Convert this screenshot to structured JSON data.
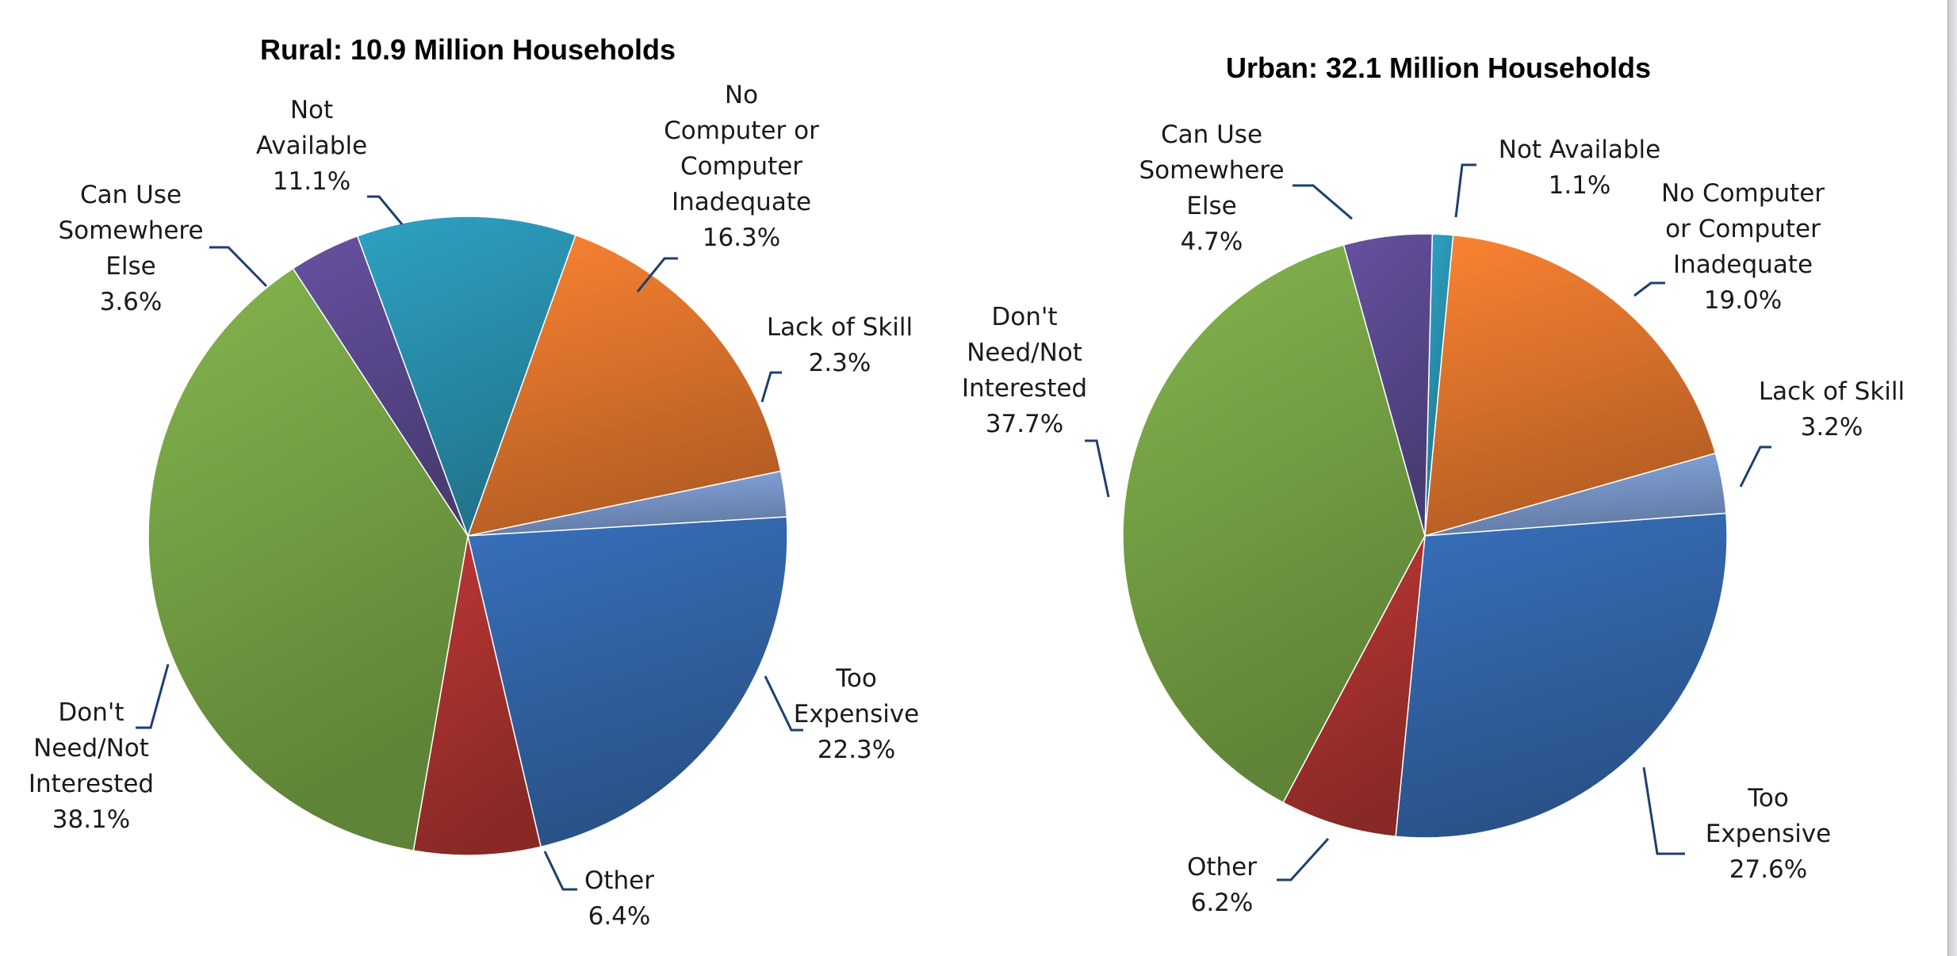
{
  "chart_data": [
    {
      "type": "pie",
      "title": "Rural:  10.9 Million Households",
      "slices": [
        {
          "key": "no-computer",
          "label_lines": [
            "No",
            "Computer or",
            "Computer",
            "Inadequate"
          ],
          "percent_text": "16.3%",
          "value": 16.3,
          "color": "#e8792e"
        },
        {
          "key": "lack-of-skill",
          "label_lines": [
            "Lack of Skill"
          ],
          "percent_text": "2.3%",
          "value": 2.3,
          "color": "#7f9ed4"
        },
        {
          "key": "too-expensive",
          "label_lines": [
            "Too",
            "Expensive"
          ],
          "percent_text": "22.3%",
          "value": 22.3,
          "color": "#3468ad"
        },
        {
          "key": "other",
          "label_lines": [
            "Other"
          ],
          "percent_text": "6.4%",
          "value": 6.4,
          "color": "#b03431"
        },
        {
          "key": "dont-need",
          "label_lines": [
            "Don't",
            "Need/Not",
            "Interested"
          ],
          "percent_text": "38.1%",
          "value": 38.1,
          "color": "#7aa847"
        },
        {
          "key": "can-use-elsewhere",
          "label_lines": [
            "Can Use",
            "Somewhere",
            "Else"
          ],
          "percent_text": "3.6%",
          "value": 3.6,
          "color": "#5e4b94"
        },
        {
          "key": "not-available",
          "label_lines": [
            "Not",
            "Available"
          ],
          "percent_text": "11.1%",
          "value": 11.1,
          "color": "#2b96b5"
        }
      ]
    },
    {
      "type": "pie",
      "title": "Urban:  32.1 Million Households",
      "slices": [
        {
          "key": "not-available",
          "label_lines": [
            "Not Available"
          ],
          "percent_text": "1.1%",
          "value": 1.1,
          "color": "#2b96b5"
        },
        {
          "key": "no-computer",
          "label_lines": [
            "No Computer",
            "or Computer",
            "Inadequate"
          ],
          "percent_text": "19.0%",
          "value": 19.0,
          "color": "#e8792e"
        },
        {
          "key": "lack-of-skill",
          "label_lines": [
            "Lack of Skill"
          ],
          "percent_text": "3.2%",
          "value": 3.2,
          "color": "#7f9ed4"
        },
        {
          "key": "too-expensive",
          "label_lines": [
            "Too",
            "Expensive"
          ],
          "percent_text": "27.6%",
          "value": 27.6,
          "color": "#3468ad"
        },
        {
          "key": "other",
          "label_lines": [
            "Other"
          ],
          "percent_text": "6.2%",
          "value": 6.2,
          "color": "#b03431"
        },
        {
          "key": "dont-need",
          "label_lines": [
            "Don't",
            "Need/Not",
            "Interested"
          ],
          "percent_text": "37.7%",
          "value": 37.7,
          "color": "#7aa847"
        },
        {
          "key": "can-use-elsewhere",
          "label_lines": [
            "Can Use",
            "Somewhere",
            "Else"
          ],
          "percent_text": "4.7%",
          "value": 4.7,
          "color": "#5e4b94"
        }
      ]
    }
  ]
}
